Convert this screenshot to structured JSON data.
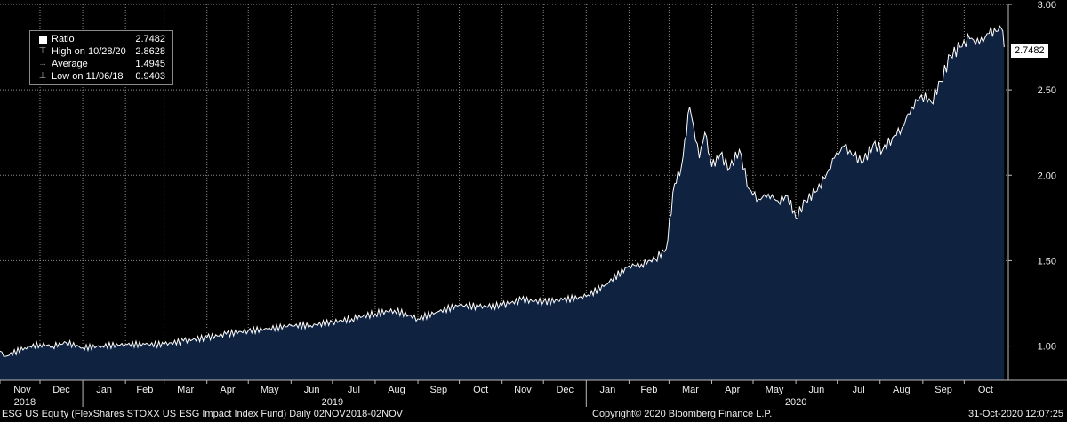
{
  "legend": {
    "rows": [
      {
        "label": "Ratio",
        "value": "2.7482",
        "icon": "square-icon"
      },
      {
        "label": "High on 10/28/20",
        "value": "2.8628",
        "icon": "high-marker-icon"
      },
      {
        "label": "Average",
        "value": "1.4945",
        "icon": "average-marker-icon"
      },
      {
        "label": "Low on 11/06/18",
        "value": "0.9403",
        "icon": "low-marker-icon"
      }
    ]
  },
  "last_value_label": "2.7482",
  "footer": {
    "left": "ESG US Equity (FlexShares STOXX US ESG Impact Index Fund)  Daily 02NOV2018-02NOV",
    "center": "Copyright© 2020 Bloomberg Finance L.P.",
    "right": "31-Oct-2020 12:07:25"
  },
  "colors": {
    "line": "#ffffff",
    "fill": "#0f2240",
    "grid": "#8c8c8c",
    "background": "#000000"
  },
  "chart_data": {
    "type": "area",
    "title": "",
    "xlabel": "",
    "ylabel": "",
    "ylim": [
      0.8,
      3.0
    ],
    "xlim": [
      "2018-11-02",
      "2020-11-02"
    ],
    "y_ticks": [
      "1.00",
      "1.50",
      "2.00",
      "2.50",
      "3.00"
    ],
    "x_ticks": [
      "Nov",
      "Dec",
      "Jan",
      "Feb",
      "Mar",
      "Apr",
      "May",
      "Jun",
      "Jul",
      "Aug",
      "Sep",
      "Oct",
      "Nov",
      "Dec",
      "Jan",
      "Feb",
      "Mar",
      "Apr",
      "May",
      "Jun",
      "Jul",
      "Aug",
      "Sep",
      "Oct"
    ],
    "year_labels": [
      {
        "text": "2018",
        "date": "2018-11-20"
      },
      {
        "text": "2019",
        "date": "2019-07-01"
      },
      {
        "text": "2020",
        "date": "2020-06-01"
      }
    ],
    "grid": true,
    "series": [
      {
        "x": [
          "2018-11-02",
          "2018-11-06",
          "2018-11-20",
          "2018-12-01",
          "2018-12-10",
          "2018-12-20",
          "2019-01-01",
          "2019-01-15",
          "2019-02-01",
          "2019-02-15",
          "2019-03-01",
          "2019-03-15",
          "2019-04-01",
          "2019-04-15",
          "2019-05-01",
          "2019-05-15",
          "2019-06-01",
          "2019-06-15",
          "2019-07-01",
          "2019-07-15",
          "2019-08-01",
          "2019-08-15",
          "2019-09-01",
          "2019-09-15",
          "2019-10-01",
          "2019-10-15",
          "2019-11-01",
          "2019-11-15",
          "2019-12-01",
          "2019-12-15",
          "2020-01-01",
          "2020-01-15",
          "2020-02-01",
          "2020-02-10",
          "2020-02-20",
          "2020-02-28",
          "2020-03-05",
          "2020-03-10",
          "2020-03-16",
          "2020-03-23",
          "2020-03-27",
          "2020-04-01",
          "2020-04-07",
          "2020-04-14",
          "2020-04-21",
          "2020-04-28",
          "2020-05-05",
          "2020-05-12",
          "2020-05-19",
          "2020-05-26",
          "2020-06-01",
          "2020-06-08",
          "2020-06-15",
          "2020-06-22",
          "2020-06-29",
          "2020-07-06",
          "2020-07-13",
          "2020-07-20",
          "2020-07-27",
          "2020-08-03",
          "2020-08-10",
          "2020-08-17",
          "2020-08-24",
          "2020-08-31",
          "2020-09-07",
          "2020-09-14",
          "2020-09-21",
          "2020-09-28",
          "2020-10-05",
          "2020-10-12",
          "2020-10-19",
          "2020-10-28",
          "2020-10-30"
        ],
        "values": [
          0.97,
          0.94,
          0.99,
          1.01,
          1.0,
          1.02,
          0.99,
          1.0,
          1.01,
          1.01,
          1.01,
          1.03,
          1.05,
          1.07,
          1.09,
          1.1,
          1.12,
          1.12,
          1.14,
          1.16,
          1.19,
          1.21,
          1.16,
          1.2,
          1.24,
          1.23,
          1.24,
          1.27,
          1.26,
          1.27,
          1.29,
          1.36,
          1.47,
          1.48,
          1.51,
          1.57,
          1.95,
          2.05,
          2.4,
          2.1,
          2.25,
          2.05,
          2.12,
          2.04,
          2.15,
          1.92,
          1.86,
          1.89,
          1.85,
          1.88,
          1.75,
          1.85,
          1.9,
          1.98,
          2.1,
          2.17,
          2.11,
          2.08,
          2.18,
          2.15,
          2.22,
          2.28,
          2.4,
          2.47,
          2.43,
          2.55,
          2.7,
          2.75,
          2.8,
          2.77,
          2.83,
          2.86,
          2.75
        ]
      }
    ]
  }
}
